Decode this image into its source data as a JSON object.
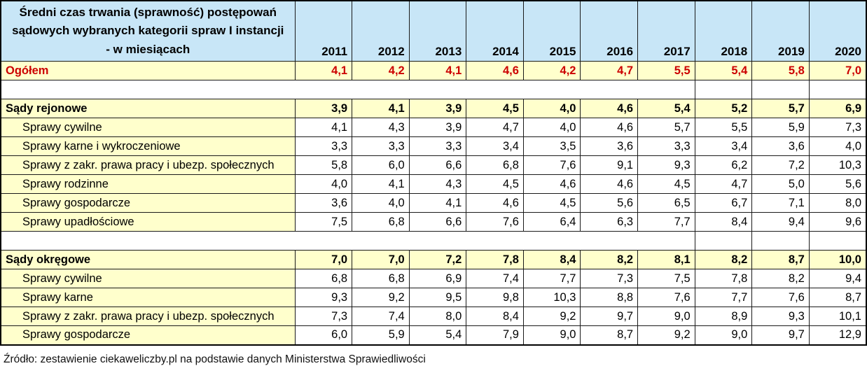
{
  "header": {
    "title_lines": [
      "Średni czas trwania (sprawność) postępowań",
      "sądowych wybranych kategorii spraw I instancji",
      "- w miesiącach"
    ]
  },
  "footer": {
    "source": "Źródło: zestawienie ciekaweliczby.pl na podstawie danych Ministerstwa Sprawiedliwości"
  },
  "colors": {
    "header_bg": "#c8e6f7",
    "highlight_row_bg": "#ffffcc",
    "total_text": "#cc0000",
    "border": "#1a1a1a"
  },
  "chart_data": {
    "type": "table",
    "title": "Średni czas trwania (sprawność) postępowań sądowych wybranych kategorii spraw I instancji - w miesiącach",
    "unit": "miesiące",
    "columns": [
      "2011",
      "2012",
      "2013",
      "2014",
      "2015",
      "2016",
      "2017",
      "2018",
      "2019",
      "2020"
    ],
    "rows": [
      {
        "label": "Ogółem",
        "type": "total",
        "values": [
          4.1,
          4.2,
          4.1,
          4.6,
          4.2,
          4.7,
          5.5,
          5.4,
          5.8,
          7.0
        ]
      },
      {
        "type": "spacer"
      },
      {
        "label": "Sądy rejonowe",
        "type": "section",
        "values": [
          3.9,
          4.1,
          3.9,
          4.5,
          4.0,
          4.6,
          5.4,
          5.2,
          5.7,
          6.9
        ]
      },
      {
        "label": "Sprawy cywilne",
        "type": "sub",
        "values": [
          4.1,
          4.3,
          3.9,
          4.7,
          4.0,
          4.6,
          5.7,
          5.5,
          5.9,
          7.3
        ]
      },
      {
        "label": "Sprawy karne i wykroczeniowe",
        "type": "sub",
        "values": [
          3.3,
          3.3,
          3.3,
          3.4,
          3.5,
          3.6,
          3.3,
          3.4,
          3.6,
          4.0
        ]
      },
      {
        "label": "Sprawy z zakr. prawa pracy i ubezp. społecznych",
        "type": "sub",
        "values": [
          5.8,
          6.0,
          6.6,
          6.8,
          7.6,
          9.1,
          9.3,
          6.2,
          7.2,
          10.3
        ]
      },
      {
        "label": "Sprawy rodzinne",
        "type": "sub",
        "values": [
          4.0,
          4.1,
          4.3,
          4.5,
          4.6,
          4.6,
          4.5,
          4.7,
          5.0,
          5.6
        ]
      },
      {
        "label": "Sprawy gospodarcze",
        "type": "sub",
        "values": [
          3.6,
          4.0,
          4.1,
          4.6,
          4.5,
          5.6,
          6.5,
          6.7,
          7.1,
          8.0
        ]
      },
      {
        "label": "Sprawy upadłościowe",
        "type": "sub",
        "values": [
          7.5,
          6.8,
          6.6,
          7.6,
          6.4,
          6.3,
          7.7,
          8.4,
          9.4,
          9.6
        ]
      },
      {
        "type": "spacer"
      },
      {
        "label": "Sądy okręgowe",
        "type": "section",
        "values": [
          7.0,
          7.0,
          7.2,
          7.8,
          8.4,
          8.2,
          8.1,
          8.2,
          8.7,
          10.0
        ]
      },
      {
        "label": "Sprawy cywilne",
        "type": "sub",
        "values": [
          6.8,
          6.8,
          6.9,
          7.4,
          7.7,
          7.3,
          7.5,
          7.8,
          8.2,
          9.4
        ]
      },
      {
        "label": "Sprawy karne",
        "type": "sub",
        "values": [
          9.3,
          9.2,
          9.5,
          9.8,
          10.3,
          8.8,
          7.6,
          7.7,
          7.6,
          8.7
        ]
      },
      {
        "label": "Sprawy z zakr. prawa pracy i ubezp. społecznych",
        "type": "sub",
        "values": [
          7.3,
          7.4,
          8.0,
          8.4,
          9.2,
          9.7,
          9.0,
          8.9,
          9.3,
          10.1
        ]
      },
      {
        "label": "Sprawy gospodarcze",
        "type": "sub",
        "values": [
          6.0,
          5.9,
          5.4,
          7.9,
          9.0,
          8.7,
          9.2,
          9.0,
          9.7,
          12.9
        ]
      }
    ]
  }
}
